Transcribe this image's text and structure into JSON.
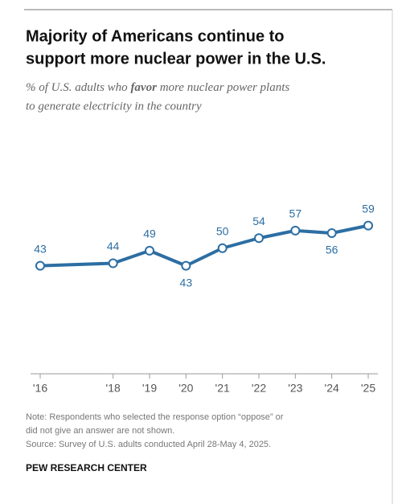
{
  "chart_data": {
    "type": "line",
    "title": [
      "Majority of Americans continue to",
      "support more nuclear power in the U.S."
    ],
    "subtitle": [
      "% of U.S. adults who ",
      "favor",
      " more nuclear power plants",
      "to generate electricity in the country"
    ],
    "x": [
      16,
      18,
      19,
      20,
      21,
      22,
      23,
      24,
      25
    ],
    "values": [
      43,
      44,
      49,
      43,
      50,
      54,
      57,
      56,
      59
    ],
    "color": "#2c6ea3",
    "xlim": [
      16,
      25
    ],
    "xticks": [
      {
        "value": 16,
        "label": "'16"
      },
      {
        "value": 18,
        "label": "'18"
      },
      {
        "value": 19,
        "label": "'19"
      },
      {
        "value": 20,
        "label": "'20"
      },
      {
        "value": 21,
        "label": "'21"
      },
      {
        "value": 22,
        "label": "'22"
      },
      {
        "value": 23,
        "label": "'23"
      },
      {
        "value": 24,
        "label": "'24"
      },
      {
        "value": 25,
        "label": "'25"
      }
    ],
    "ylim": [
      0,
      70
    ],
    "note": [
      "Note: Respondents who selected the response option “oppose” or",
      "did not give an answer are not shown."
    ],
    "source": "Source: Survey of U.S. adults conducted April 28-May 4, 2025.",
    "credit": "PEW RESEARCH CENTER"
  }
}
